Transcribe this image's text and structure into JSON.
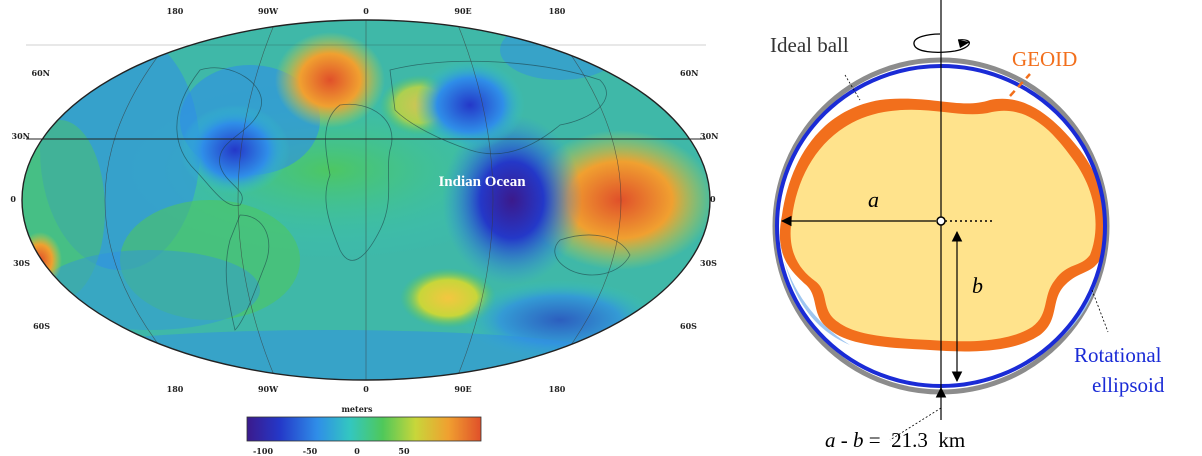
{
  "geoid_map": {
    "top_lon_labels": [
      "180",
      "90W",
      "0",
      "90E",
      "180"
    ],
    "bottom_lon_labels": [
      "180",
      "90W",
      "0",
      "90E",
      "180"
    ],
    "left_lat_labels": [
      "60N",
      "30N",
      "0",
      "30S",
      "60S"
    ],
    "right_lat_labels": [
      "60N",
      "30N",
      "0",
      "30S",
      "60S"
    ],
    "annotation": "Indian Ocean",
    "colorbar": {
      "title": "meters",
      "ticks": [
        "-100",
        "-50",
        "0",
        "50"
      ],
      "colors": [
        "#3b1a8c",
        "#2438c8",
        "#2f8ee8",
        "#33c7c0",
        "#4fc85a",
        "#c8d63a",
        "#f0a030",
        "#e0502a"
      ]
    }
  },
  "earth_figure": {
    "ideal_ball_label": "Ideal ball",
    "geoid_label": "GEOID",
    "ellipsoid_label_line1": "Rotational",
    "ellipsoid_label_line2": "ellipsoid",
    "semi_major_symbol": "a",
    "semi_minor_symbol": "b",
    "difference_a": "a",
    "difference_op": " - ",
    "difference_b": "b",
    "difference_value": " =  21.3  km",
    "colors": {
      "ball": "#8c8c8c",
      "geoid": "#f26f1c",
      "geoid_fill": "#ffe38c",
      "ellipsoid": "#1a2bd6",
      "label_blue": "#1a2bd6",
      "label_orange": "#f26f1c"
    }
  }
}
